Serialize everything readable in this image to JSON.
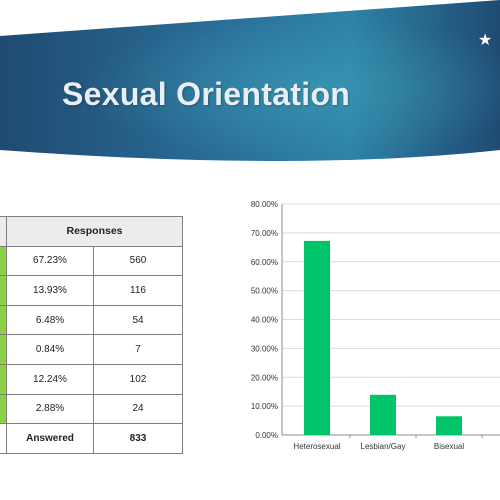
{
  "slide": {
    "title": "Sexual Orientation",
    "star_icon": "star-icon",
    "colors": {
      "banner_dark": "#1f4a73",
      "banner_light": "#2e83a6",
      "bar": "#00c46a",
      "row_marker": "#8cd043"
    }
  },
  "table": {
    "header": "Responses",
    "rows": [
      {
        "percent": "67.23%",
        "count": "560"
      },
      {
        "percent": "13.93%",
        "count": "116"
      },
      {
        "percent": "6.48%",
        "count": "54"
      },
      {
        "percent": "0.84%",
        "count": "7"
      },
      {
        "percent": "12.24%",
        "count": "102"
      },
      {
        "percent": "2.88%",
        "count": "24"
      }
    ],
    "footer_label": "Answered",
    "footer_value": "833"
  },
  "chart_data": {
    "type": "bar",
    "categories": [
      "Heterosexual",
      "Lesbian/Gay",
      "Bisexual",
      ""
    ],
    "values": [
      67.23,
      13.93,
      6.48,
      0.84
    ],
    "ylim": [
      0,
      80
    ],
    "yticks": [
      "0.00%",
      "10.00%",
      "20.00%",
      "30.00%",
      "40.00%",
      "50.00%",
      "60.00%",
      "70.00%",
      "80.00%"
    ],
    "grid": true,
    "color": "#00c46a"
  }
}
